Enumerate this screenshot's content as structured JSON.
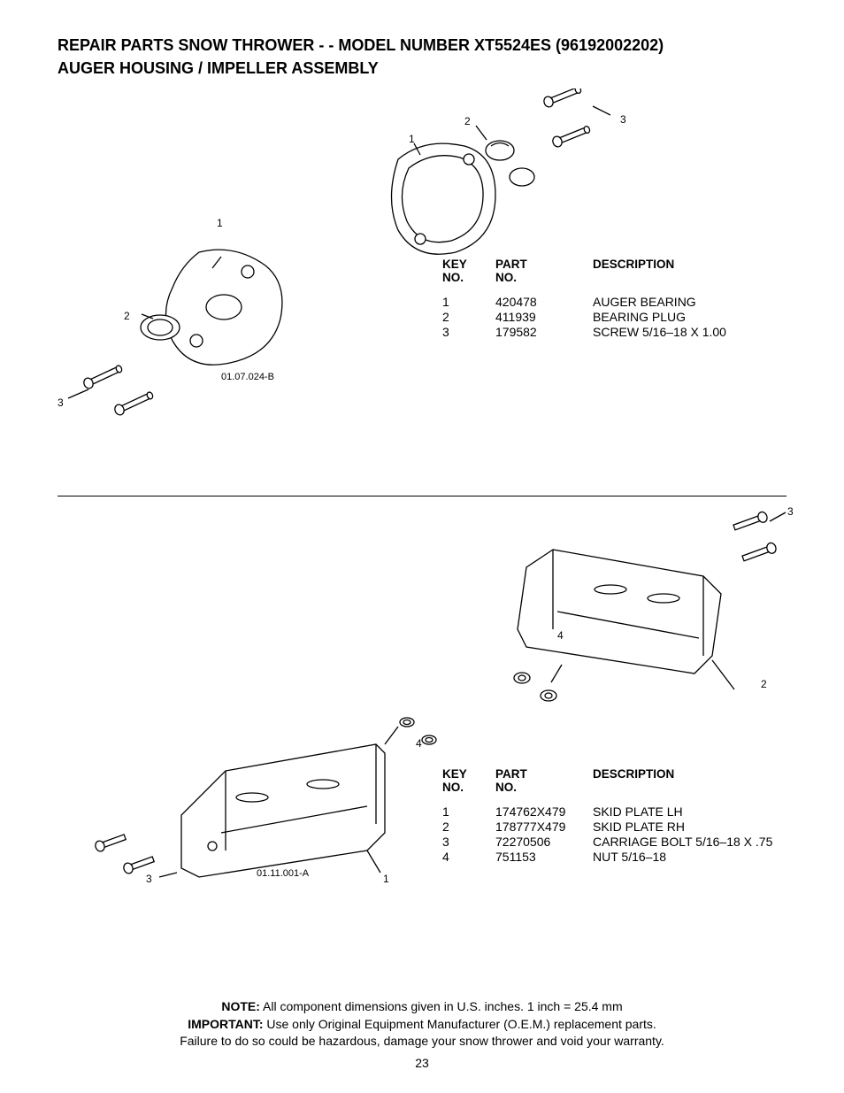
{
  "header": {
    "line1": "REPAIR PARTS  SNOW THROWER - - MODEL NUMBER  XT5524ES (96192002202)",
    "line2": "AUGER HOUSING / IMPELLER ASSEMBLY"
  },
  "section_a": {
    "diagram_ref": "01.07.024-B",
    "callouts_left": {
      "c1": "1",
      "c2": "2",
      "c3": "3"
    },
    "callouts_right": {
      "c1": "1",
      "c2": "2",
      "c3": "3"
    },
    "table": {
      "headers": {
        "key": "KEY NO.",
        "part": "PART NO.",
        "desc": "DESCRIPTION"
      },
      "rows": [
        {
          "key": "1",
          "part": "420478",
          "desc": "AUGER BEARING"
        },
        {
          "key": "2",
          "part": "411939",
          "desc": "BEARING PLUG"
        },
        {
          "key": "3",
          "part": "179582",
          "desc": "SCREW 5/16–18 X 1.00"
        }
      ]
    }
  },
  "section_b": {
    "diagram_ref": "01.11.001-A",
    "callouts_left": {
      "c1": "1",
      "c3": "3",
      "c4": "4"
    },
    "callouts_right": {
      "c2": "2",
      "c3": "3",
      "c4": "4"
    },
    "table": {
      "headers": {
        "key": "KEY NO.",
        "part": "PART NO.",
        "desc": "DESCRIPTION"
      },
      "rows": [
        {
          "key": "1",
          "part": "174762X479",
          "desc": "SKID PLATE LH"
        },
        {
          "key": "2",
          "part": "178777X479",
          "desc": "SKID PLATE RH"
        },
        {
          "key": "3",
          "part": "72270506",
          "desc": "CARRIAGE BOLT 5/16–18 X .75"
        },
        {
          "key": "4",
          "part": "751153",
          "desc": "NUT 5/16–18"
        }
      ]
    }
  },
  "footer": {
    "note_label": "NOTE:",
    "note_text": "  All component dimensions given in U.S. inches.    1 inch = 25.4 mm",
    "important_label": "IMPORTANT:",
    "important_text": " Use only Original Equipment Manufacturer (O.E.M.) replacement parts.",
    "warranty_text": "Failure to do so could be hazardous, damage your snow thrower and void your warranty.",
    "page_number": "23"
  },
  "style": {
    "text_color": "#000000",
    "background_color": "#ffffff",
    "stroke_color": "#000000",
    "title_fontsize": 18,
    "body_fontsize": 14,
    "callout_fontsize": 12,
    "ref_fontsize": 11
  }
}
